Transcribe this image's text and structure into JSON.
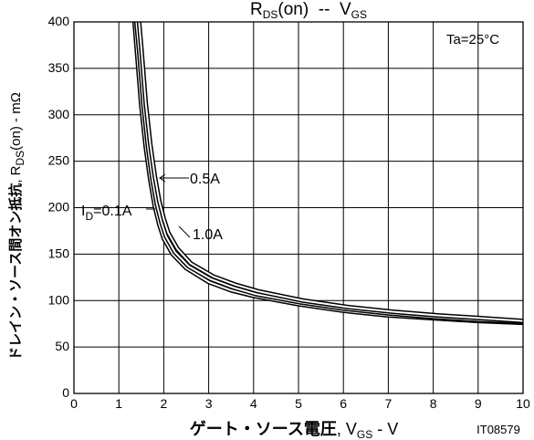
{
  "chart_data": {
    "type": "line",
    "title_parts": {
      "r": "R",
      "ds_sub": "DS",
      "on": "(on)",
      "sep": "  --  ",
      "v": "V",
      "gs_sub": "GS"
    },
    "xlabel_parts": {
      "jp": "ゲート・ソース電圧",
      "comma": ", ",
      "v": "V",
      "gs_sub": "GS",
      "unit": " - V"
    },
    "ylabel_parts": {
      "jp": "ドレイン・ソース間オン抵抗",
      "comma": ", ",
      "r": "R",
      "ds_sub": "DS",
      "on": "(on)",
      "unit": " - mΩ"
    },
    "condition": "Ta=25°C",
    "figure_code": "IT08579",
    "xlim": [
      0,
      10
    ],
    "ylim": [
      0,
      400
    ],
    "x_ticks": [
      "0",
      "1",
      "2",
      "3",
      "4",
      "5",
      "6",
      "7",
      "8",
      "9",
      "10"
    ],
    "y_ticks": [
      "0",
      "50",
      "100",
      "150",
      "200",
      "250",
      "300",
      "350",
      "400"
    ],
    "grid": true,
    "series": [
      {
        "name": "0.1A",
        "x": [
          1.35,
          1.4,
          1.5,
          1.6,
          1.7,
          1.8,
          1.9,
          2.0,
          2.2,
          2.5,
          3.0,
          3.5,
          4.0,
          5.0,
          6.0,
          7.0,
          8.0,
          9.0,
          10.0
        ],
        "y": [
          400,
          370,
          310,
          265,
          230,
          202,
          182,
          167,
          150,
          135,
          120,
          111,
          105,
          96,
          89,
          84,
          81,
          78,
          76
        ]
      },
      {
        "name": "0.5A",
        "x": [
          1.39,
          1.45,
          1.55,
          1.65,
          1.75,
          1.85,
          1.95,
          2.05,
          2.25,
          2.55,
          3.05,
          3.55,
          4.05,
          5.05,
          6.05,
          7.05,
          8.05,
          9.05,
          10.0
        ],
        "y": [
          400,
          370,
          310,
          265,
          230,
          203,
          184,
          169,
          152,
          137,
          123,
          114,
          107,
          98,
          91,
          86,
          82,
          79,
          77
        ]
      },
      {
        "name": "1.0A",
        "x": [
          1.45,
          1.5,
          1.6,
          1.7,
          1.8,
          1.9,
          2.0,
          2.1,
          2.3,
          2.6,
          3.1,
          3.6,
          4.1,
          5.1,
          6.1,
          7.1,
          8.1,
          9.1,
          10.0
        ],
        "y": [
          400,
          372,
          312,
          268,
          234,
          207,
          188,
          173,
          156,
          140,
          126,
          117,
          110,
          100,
          93,
          88,
          84,
          81,
          78
        ]
      }
    ],
    "annotations": {
      "id_prefix": "I",
      "id_sub": "D",
      "id_val": "=0.1A",
      "half_amp": "0.5A",
      "one_amp": "1.0A"
    }
  }
}
